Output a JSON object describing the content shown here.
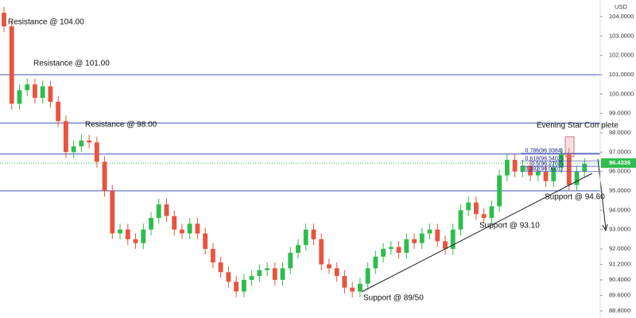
{
  "chart_data": {
    "type": "candlestick",
    "currency": "USD",
    "up_color": "#2ebd4e",
    "down_color": "#e8543f",
    "level_color": "#3f51b5",
    "ylim": [
      88.43,
      104.86
    ],
    "yticks": [
      {
        "value": 104.0,
        "label": "104.0000"
      },
      {
        "value": 103.0,
        "label": "103.0000"
      },
      {
        "value": 102.0,
        "label": "102.0000"
      },
      {
        "value": 101.0,
        "label": "101.0000"
      },
      {
        "value": 100.0,
        "label": "100.0000"
      },
      {
        "value": 99.0,
        "label": "99.0000"
      },
      {
        "value": 98.0,
        "label": "98.0000"
      },
      {
        "value": 97.0,
        "label": "97.0000"
      },
      {
        "value": 96.0,
        "label": "96.0000"
      },
      {
        "value": 95.0,
        "label": "95.0000"
      },
      {
        "value": 94.0,
        "label": "94.0000"
      },
      {
        "value": 93.0,
        "label": "93.0000"
      },
      {
        "value": 92.0,
        "label": "92.0000"
      },
      {
        "value": 91.2,
        "label": "91.2000"
      },
      {
        "value": 90.4,
        "label": "90.4000"
      },
      {
        "value": 89.6,
        "label": "89.6000"
      },
      {
        "value": 88.8,
        "label": "88.8000"
      }
    ],
    "last_price": 96.4336,
    "levels": [
      101.0,
      98.5,
      96.9,
      95.0
    ],
    "fib_levels": [
      {
        "value": 96.9384,
        "label": "0.786(96.9384)"
      },
      {
        "value": 96.5402,
        "label": "0.618(96.5402)"
      },
      {
        "value": 96.2702,
        "label": "0.5(96.2702)"
      },
      {
        "value": 96.0001,
        "label": "0.382(96.0001)"
      }
    ],
    "annotations": [
      "Resistance @ 104.00",
      "Resistance @ 101.00",
      "Resistance @ 98.00",
      "Evening Star Complete",
      "Support @ 94.60",
      "Support @ 93.10",
      "Support @ 89/50"
    ],
    "open": [
      104.2,
      103.5,
      99.5,
      100.2,
      100.5,
      99.8,
      100.4,
      99.6,
      98.6,
      97.0,
      97.3,
      97.6,
      97.5,
      96.5,
      95.0,
      92.8,
      93.0,
      92.5,
      92.3,
      93.0,
      93.6,
      94.3,
      93.7,
      93.0,
      92.8,
      93.3,
      92.8,
      92.0,
      91.3,
      90.8,
      90.3,
      89.8,
      90.4,
      90.6,
      90.9,
      91.0,
      90.4,
      91.0,
      91.8,
      92.2,
      93.0,
      92.5,
      91.2,
      91.0,
      90.6,
      90.0,
      89.8,
      90.2,
      91.0,
      91.6,
      92.0,
      92.1,
      91.8,
      92.5,
      92.3,
      92.8,
      93.0,
      92.4,
      92.0,
      93.0,
      94.0,
      94.4,
      93.8,
      93.6,
      94.2,
      95.8,
      96.6,
      96.0,
      96.3,
      95.8,
      96.0,
      95.5,
      96.2,
      96.9,
      95.3,
      96.0
    ],
    "high": [
      104.5,
      103.8,
      100.5,
      100.8,
      100.8,
      100.7,
      100.7,
      99.9,
      98.9,
      97.6,
      97.9,
      97.9,
      97.8,
      96.8,
      95.3,
      93.3,
      93.3,
      92.8,
      93.3,
      93.9,
      94.6,
      94.6,
      94.0,
      93.3,
      93.6,
      93.6,
      93.1,
      92.3,
      91.6,
      91.1,
      90.6,
      90.7,
      90.9,
      91.2,
      91.3,
      91.3,
      91.3,
      92.1,
      92.5,
      93.3,
      93.3,
      92.8,
      91.5,
      91.3,
      90.9,
      90.3,
      90.5,
      91.3,
      91.9,
      92.3,
      92.4,
      92.4,
      92.8,
      92.8,
      93.1,
      93.3,
      93.3,
      92.7,
      93.3,
      94.3,
      94.7,
      94.7,
      94.1,
      94.5,
      96.1,
      96.9,
      96.9,
      96.6,
      96.6,
      96.3,
      96.3,
      96.5,
      97.2,
      97.2,
      96.3,
      96.7
    ],
    "low": [
      103.2,
      99.2,
      99.2,
      99.9,
      99.5,
      99.5,
      99.3,
      98.3,
      96.7,
      96.7,
      97.0,
      97.2,
      96.2,
      94.7,
      92.5,
      92.5,
      92.2,
      92.0,
      92.0,
      92.7,
      93.3,
      93.4,
      92.7,
      92.5,
      92.5,
      92.5,
      91.7,
      91.0,
      90.5,
      90.0,
      89.5,
      89.5,
      90.1,
      90.3,
      90.6,
      90.1,
      90.1,
      90.7,
      91.5,
      91.9,
      92.2,
      90.9,
      90.7,
      90.3,
      89.7,
      89.5,
      89.5,
      89.9,
      90.7,
      91.3,
      91.7,
      91.5,
      91.5,
      92.0,
      92.0,
      92.5,
      92.1,
      91.7,
      91.7,
      92.7,
      93.7,
      93.5,
      93.3,
      93.3,
      93.9,
      95.5,
      95.7,
      95.7,
      95.5,
      95.5,
      95.2,
      95.2,
      95.9,
      95.0,
      95.0,
      95.7
    ],
    "close": [
      103.5,
      99.5,
      100.2,
      100.5,
      99.8,
      100.4,
      99.6,
      98.6,
      97.0,
      97.3,
      97.6,
      97.5,
      96.5,
      95.0,
      92.8,
      93.0,
      92.5,
      92.3,
      93.0,
      93.6,
      94.3,
      93.7,
      93.0,
      92.8,
      93.3,
      92.8,
      92.0,
      91.3,
      90.8,
      90.3,
      89.8,
      90.4,
      90.6,
      90.9,
      91.0,
      90.4,
      91.0,
      91.8,
      92.2,
      93.0,
      92.5,
      91.2,
      91.0,
      90.6,
      90.0,
      89.8,
      90.2,
      91.0,
      91.6,
      92.0,
      92.1,
      91.8,
      92.5,
      92.3,
      92.8,
      93.0,
      92.4,
      92.0,
      93.0,
      94.0,
      94.4,
      93.8,
      93.6,
      94.2,
      95.8,
      96.6,
      96.0,
      96.3,
      95.8,
      96.0,
      95.5,
      96.2,
      96.9,
      95.3,
      96.0,
      96.4
    ]
  }
}
